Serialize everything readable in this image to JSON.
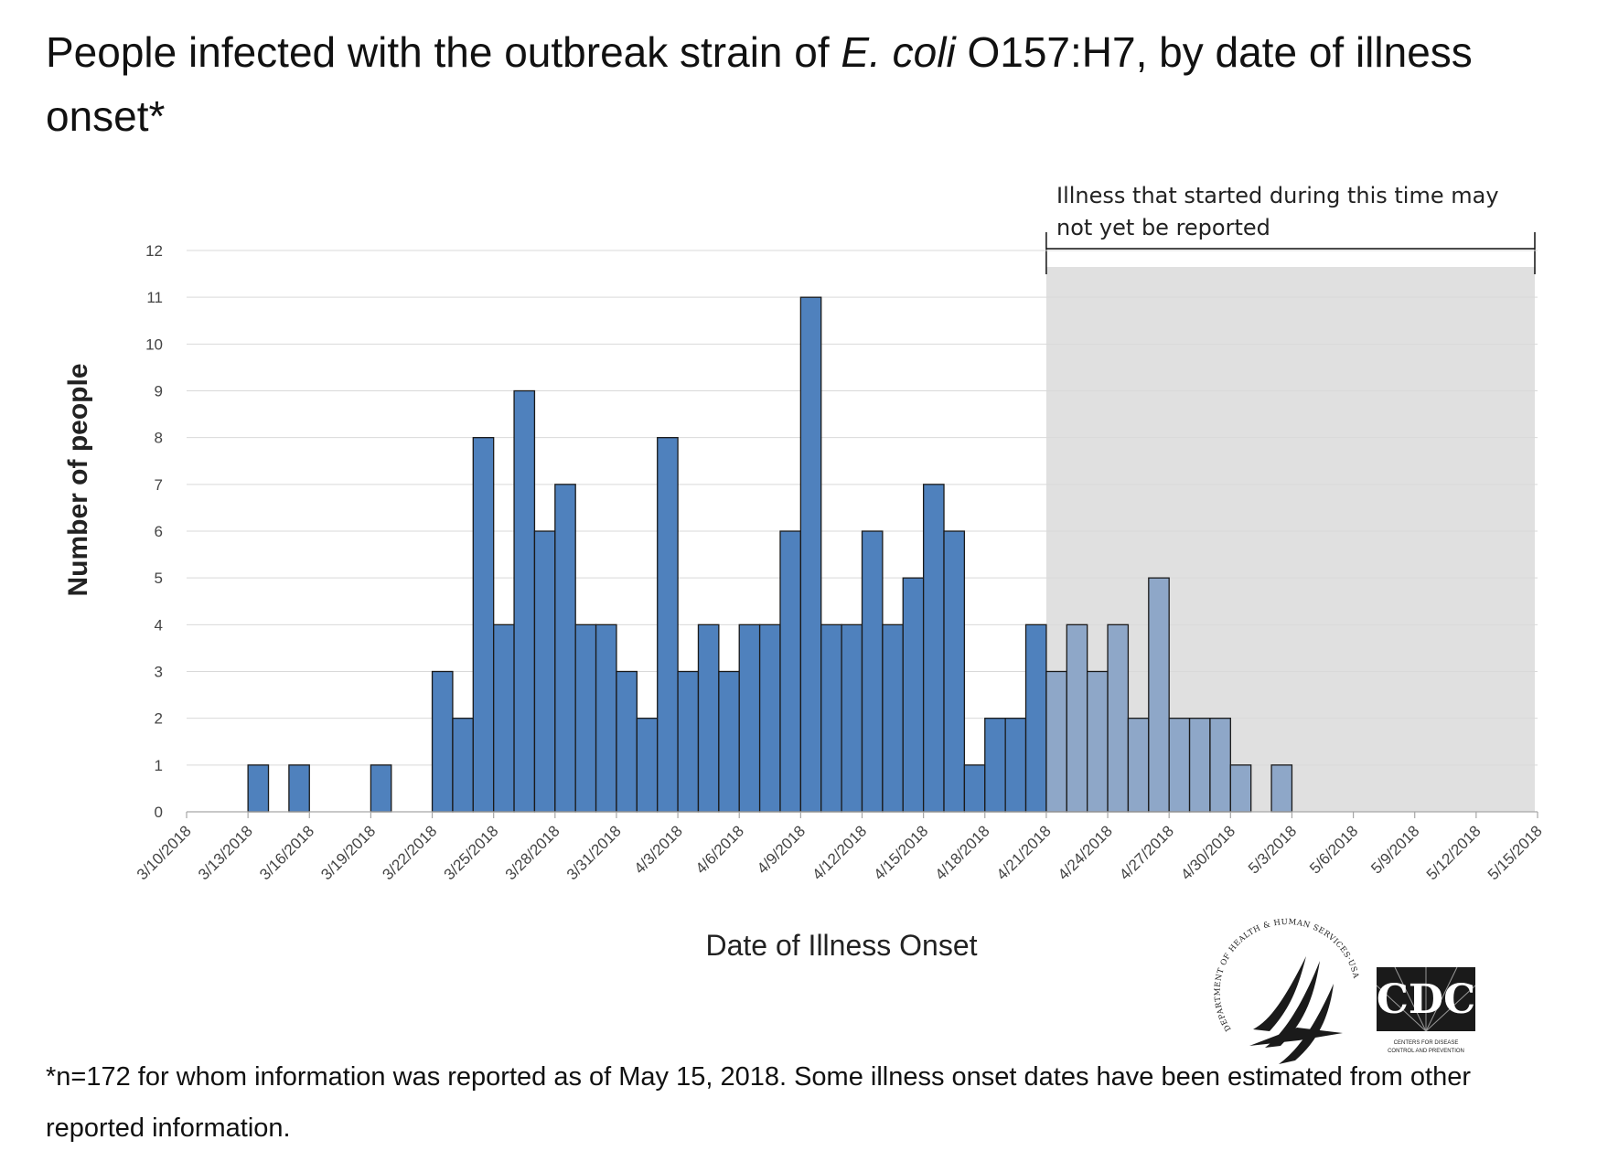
{
  "title": {
    "before": "People infected with the outbreak strain of ",
    "italic": "E. coli",
    "after": " O157:H7, by date of illness onset*"
  },
  "footnote": "*n=172 for whom information was reported as of May 15, 2018. Some illness onset dates have been estimated from other reported information.",
  "annotation": {
    "line1": "Illness that started during this time may",
    "line2": "not yet be reported",
    "range": [
      "4/21/2018",
      "5/15/2018"
    ]
  },
  "logos": {
    "hhs_seal": "DEPARTMENT OF HEALTH & HUMAN SERVICES·USA",
    "cdc_text": "CDC",
    "cdc_sub1": "CENTERS FOR DISEASE",
    "cdc_sub2": "CONTROL AND PREVENTION"
  },
  "colors": {
    "bar_reported": "#4f81bd",
    "bar_pending": "#8ea7c8",
    "shade": "#e0e0e0",
    "grid": "#d9d9d9",
    "bar_edge": "#1a1a1a"
  },
  "chart_data": {
    "type": "bar",
    "title": "",
    "xlabel": "Date of Illness Onset",
    "ylabel": "Number of people",
    "ylim": [
      0,
      12
    ],
    "yticks": [
      0,
      1,
      2,
      3,
      4,
      5,
      6,
      7,
      8,
      9,
      10,
      11,
      12
    ],
    "grid": true,
    "x_start": "3/10/2018",
    "x_end": "5/15/2018",
    "xticks": [
      "3/10/2018",
      "3/13/2018",
      "3/16/2018",
      "3/19/2018",
      "3/22/2018",
      "3/25/2018",
      "3/28/2018",
      "3/31/2018",
      "4/3/2018",
      "4/6/2018",
      "4/9/2018",
      "4/12/2018",
      "4/15/2018",
      "4/18/2018",
      "4/21/2018",
      "4/24/2018",
      "4/27/2018",
      "4/30/2018",
      "5/3/2018",
      "5/6/2018",
      "5/9/2018",
      "5/12/2018",
      "5/15/2018"
    ],
    "x": [
      "3/13/2018",
      "3/15/2018",
      "3/19/2018",
      "3/22/2018",
      "3/23/2018",
      "3/24/2018",
      "3/25/2018",
      "3/26/2018",
      "3/27/2018",
      "3/28/2018",
      "3/29/2018",
      "3/30/2018",
      "3/31/2018",
      "4/1/2018",
      "4/2/2018",
      "4/3/2018",
      "4/4/2018",
      "4/5/2018",
      "4/6/2018",
      "4/7/2018",
      "4/8/2018",
      "4/9/2018",
      "4/10/2018",
      "4/11/2018",
      "4/12/2018",
      "4/13/2018",
      "4/14/2018",
      "4/15/2018",
      "4/16/2018",
      "4/17/2018",
      "4/18/2018",
      "4/19/2018",
      "4/20/2018",
      "4/21/2018",
      "4/22/2018",
      "4/23/2018",
      "4/24/2018",
      "4/25/2018",
      "4/26/2018",
      "4/27/2018",
      "4/28/2018",
      "4/29/2018",
      "4/30/2018",
      "5/2/2018"
    ],
    "values": [
      1,
      1,
      1,
      3,
      2,
      8,
      4,
      9,
      6,
      7,
      4,
      4,
      3,
      2,
      8,
      3,
      4,
      3,
      4,
      4,
      6,
      11,
      4,
      4,
      6,
      4,
      5,
      7,
      6,
      1,
      2,
      2,
      4,
      3,
      4,
      3,
      4,
      2,
      5,
      2,
      2,
      2,
      1,
      1
    ],
    "pending_from": "4/21/2018"
  }
}
